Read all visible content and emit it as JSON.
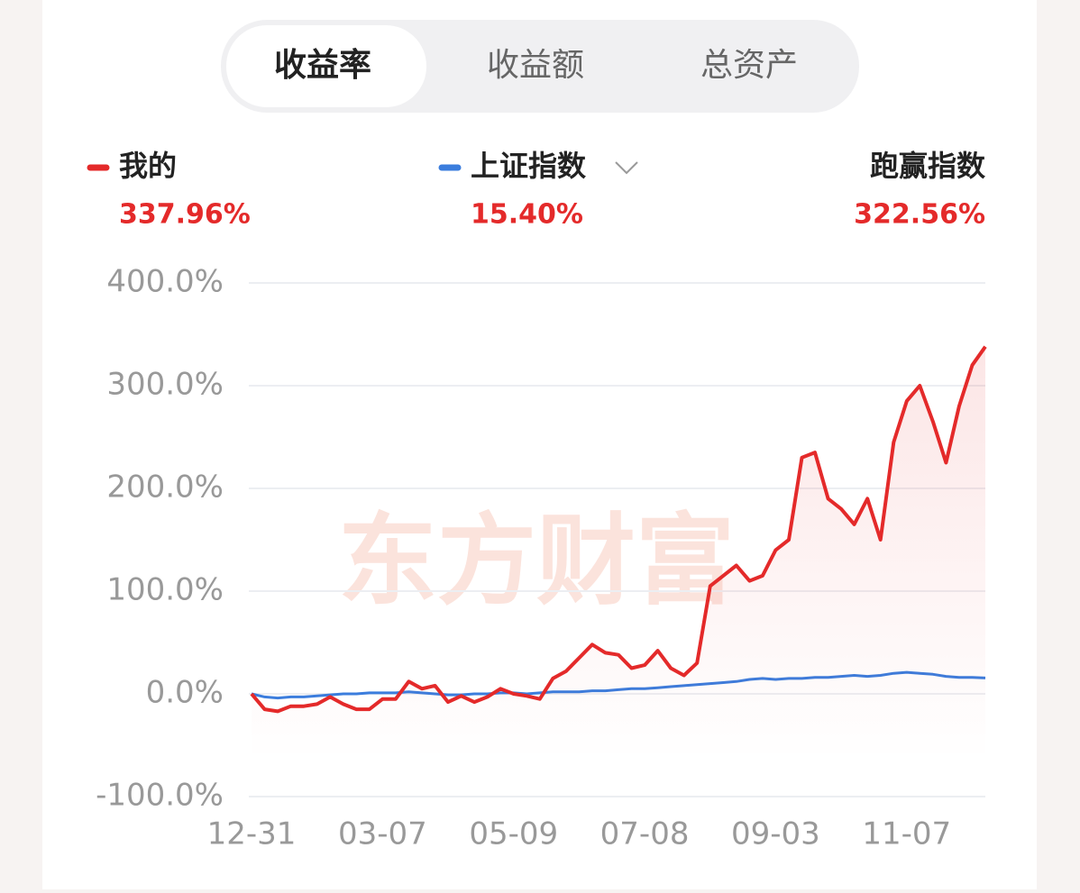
{
  "tabs": [
    "收益率",
    "收益额",
    "总资产"
  ],
  "active_tab": "收益率",
  "chart_data": {
    "type": "line",
    "watermark": "东方财富",
    "categories": [
      "12-31",
      null,
      null,
      null,
      null,
      null,
      null,
      null,
      null,
      null,
      "03-07",
      null,
      null,
      null,
      null,
      null,
      null,
      null,
      null,
      null,
      "05-09",
      null,
      null,
      null,
      null,
      null,
      null,
      null,
      null,
      null,
      "07-08",
      null,
      null,
      null,
      null,
      null,
      null,
      null,
      null,
      null,
      "09-03",
      null,
      null,
      null,
      null,
      null,
      null,
      null,
      null,
      null,
      "11-07",
      null,
      null,
      null,
      null,
      null,
      null
    ],
    "series": [
      {
        "name": "我的",
        "color": "#e42a2a",
        "value_label": "337.96%",
        "values": [
          0,
          -15,
          -17,
          -12,
          -12,
          -10,
          -3,
          -10,
          -15,
          -15,
          -5,
          -5,
          12,
          5,
          8,
          -8,
          -2,
          -8,
          -3,
          5,
          0,
          -2,
          -5,
          15,
          22,
          35,
          48,
          40,
          38,
          25,
          28,
          42,
          25,
          18,
          30,
          105,
          115,
          125,
          110,
          115,
          140,
          150,
          230,
          235,
          190,
          180,
          165,
          190,
          150,
          245,
          285,
          300,
          265,
          225,
          280,
          320,
          337.96
        ]
      },
      {
        "name": "上证指数",
        "color": "#3b7ddd",
        "value_label": "15.40%",
        "values": [
          0,
          -3,
          -4,
          -3,
          -3,
          -2,
          -1,
          0,
          0,
          1,
          1,
          1,
          2,
          1,
          0,
          -1,
          -1,
          0,
          0,
          1,
          1,
          0,
          1,
          2,
          2,
          2,
          3,
          3,
          4,
          5,
          5,
          6,
          7,
          8,
          9,
          10,
          11,
          12,
          14,
          15,
          14,
          15,
          15,
          16,
          16,
          17,
          18,
          17,
          18,
          20,
          21,
          20,
          19,
          17,
          16,
          16,
          15.4
        ]
      }
    ],
    "outperform": {
      "name": "跑赢指数",
      "value_label": "322.56%"
    },
    "ylim": [
      -100,
      400
    ],
    "yticks": [
      {
        "value": -100,
        "label": "-100.0%"
      },
      {
        "value": 0,
        "label": "0.0%"
      },
      {
        "value": 100,
        "label": "100.0%"
      },
      {
        "value": 200,
        "label": "200.0%"
      },
      {
        "value": 300,
        "label": "300.0%"
      },
      {
        "value": 400,
        "label": "400.0%"
      }
    ],
    "grid": true
  }
}
